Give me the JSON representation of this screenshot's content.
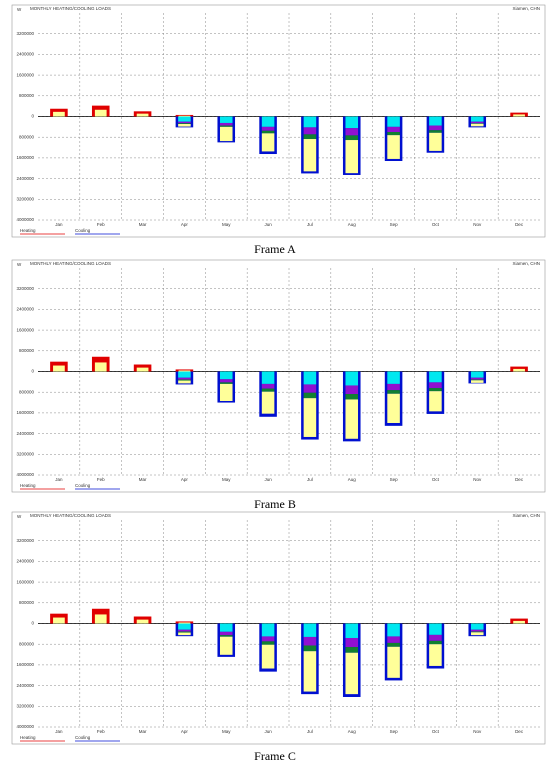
{
  "chart_data": [
    {
      "type": "bar",
      "title": "MONTHLY HEATING/COOLING LOADS",
      "location": "Xiamen, CHN",
      "ylabel": "W",
      "caption": "Frame A",
      "categories": [
        "Jan",
        "Feb",
        "Mar",
        "Apr",
        "May",
        "Jun",
        "Jul",
        "Aug",
        "Sep",
        "Oct",
        "Nov",
        "Dec"
      ],
      "ylim": [
        -4000000,
        4000000
      ],
      "yticks": [
        3200000,
        2400000,
        1600000,
        800000,
        0,
        {
          "value": -800000,
          "label": "800000"
        },
        {
          "value": -1600000,
          "label": "1600000"
        },
        {
          "value": -2400000,
          "label": "2400000"
        },
        {
          "value": -3200000,
          "label": "3200000"
        },
        {
          "value": -4000000,
          "label": "4000000"
        }
      ],
      "heating": {
        "name": "Heating",
        "color": "#e00000",
        "values": [
          300000,
          420000,
          200000,
          60000,
          0,
          0,
          0,
          0,
          0,
          0,
          0,
          150000
        ]
      },
      "heating_inner": {
        "color": "#ffff99",
        "values": [
          180000,
          260000,
          110000,
          30000,
          0,
          0,
          0,
          0,
          0,
          0,
          0,
          80000
        ]
      },
      "cooling": {
        "name": "Cooling",
        "color": "#0010d0",
        "values": [
          0,
          0,
          0,
          -420000,
          -1000000,
          -1450000,
          -2200000,
          -2260000,
          -1720000,
          -1400000,
          -420000,
          0
        ]
      },
      "cooling_parts": [
        {
          "color": "#00e8f0",
          "values": [
            0,
            0,
            0,
            -200000,
            -250000,
            -400000,
            -420000,
            -450000,
            -400000,
            -350000,
            -200000,
            0
          ]
        },
        {
          "color": "#9010d0",
          "values": [
            0,
            0,
            0,
            -60000,
            -100000,
            -150000,
            -270000,
            -280000,
            -200000,
            -180000,
            -60000,
            0
          ]
        },
        {
          "color": "#108030",
          "values": [
            0,
            0,
            0,
            -30000,
            -50000,
            -100000,
            -180000,
            -180000,
            -120000,
            -100000,
            -20000,
            0
          ]
        },
        {
          "color": "#ffff99",
          "values": [
            0,
            0,
            0,
            -100000,
            -550000,
            -700000,
            -1250000,
            -1280000,
            -920000,
            -700000,
            -100000,
            0
          ]
        }
      ]
    },
    {
      "type": "bar",
      "title": "MONTHLY HEATING/COOLING LOADS",
      "location": "Xiamen, CHN",
      "ylabel": "W",
      "caption": "Frame B",
      "categories": [
        "Jan",
        "Feb",
        "Mar",
        "Apr",
        "May",
        "Jun",
        "Jul",
        "Aug",
        "Sep",
        "Oct",
        "Nov",
        "Dec"
      ],
      "ylim": [
        -4000000,
        4000000
      ],
      "yticks": [
        3200000,
        2400000,
        1600000,
        800000,
        0,
        {
          "value": -800000,
          "label": "800000"
        },
        {
          "value": -1600000,
          "label": "1600000"
        },
        {
          "value": -2400000,
          "label": "2400000"
        },
        {
          "value": -3200000,
          "label": "3200000"
        },
        {
          "value": -4000000,
          "label": "4000000"
        }
      ],
      "heating": {
        "name": "Heating",
        "color": "#e00000",
        "values": [
          380000,
          570000,
          270000,
          80000,
          0,
          0,
          0,
          0,
          0,
          0,
          0,
          190000
        ]
      },
      "heating_inner": {
        "color": "#ffff99",
        "values": [
          230000,
          350000,
          150000,
          40000,
          0,
          0,
          0,
          0,
          0,
          0,
          0,
          100000
        ]
      },
      "cooling": {
        "name": "Cooling",
        "color": "#0010d0",
        "values": [
          0,
          0,
          0,
          -500000,
          -1200000,
          -1750000,
          -2630000,
          -2700000,
          -2100000,
          -1640000,
          -460000,
          0
        ]
      },
      "cooling_parts": [
        {
          "color": "#00e8f0",
          "values": [
            0,
            0,
            0,
            -240000,
            -300000,
            -480000,
            -500000,
            -540000,
            -480000,
            -420000,
            -240000,
            0
          ]
        },
        {
          "color": "#9010d0",
          "values": [
            0,
            0,
            0,
            -70000,
            -120000,
            -180000,
            -320000,
            -330000,
            -240000,
            -220000,
            -70000,
            0
          ]
        },
        {
          "color": "#108030",
          "values": [
            0,
            0,
            0,
            -40000,
            -60000,
            -120000,
            -210000,
            -210000,
            -140000,
            -120000,
            -30000,
            0
          ]
        },
        {
          "color": "#ffff99",
          "values": [
            0,
            0,
            0,
            -110000,
            -660000,
            -850000,
            -1500000,
            -1520000,
            -1130000,
            -780000,
            -100000,
            0
          ]
        }
      ]
    },
    {
      "type": "bar",
      "title": "MONTHLY HEATING/COOLING LOADS",
      "location": "Xiamen, CHN",
      "ylabel": "W",
      "caption": "Frame C",
      "categories": [
        "Jan",
        "Feb",
        "Mar",
        "Apr",
        "May",
        "Jun",
        "Jul",
        "Aug",
        "Sep",
        "Oct",
        "Nov",
        "Dec"
      ],
      "ylim": [
        -4000000,
        4000000
      ],
      "yticks": [
        3200000,
        2400000,
        1600000,
        800000,
        0,
        {
          "value": -800000,
          "label": "800000"
        },
        {
          "value": -1600000,
          "label": "1600000"
        },
        {
          "value": -2400000,
          "label": "2400000"
        },
        {
          "value": -3200000,
          "label": "3200000"
        },
        {
          "value": -4000000,
          "label": "4000000"
        }
      ],
      "heating": {
        "name": "Heating",
        "color": "#e00000",
        "values": [
          380000,
          570000,
          270000,
          80000,
          0,
          0,
          0,
          0,
          0,
          0,
          0,
          190000
        ]
      },
      "heating_inner": {
        "color": "#ffff99",
        "values": [
          230000,
          350000,
          150000,
          40000,
          0,
          0,
          0,
          0,
          0,
          0,
          0,
          100000
        ]
      },
      "cooling": {
        "name": "Cooling",
        "color": "#0010d0",
        "values": [
          0,
          0,
          0,
          -490000,
          -1290000,
          -1860000,
          -2730000,
          -2840000,
          -2200000,
          -1740000,
          -490000,
          0
        ]
      },
      "cooling_parts": [
        {
          "color": "#00e8f0",
          "values": [
            0,
            0,
            0,
            -240000,
            -320000,
            -500000,
            -520000,
            -560000,
            -500000,
            -440000,
            -240000,
            0
          ]
        },
        {
          "color": "#9010d0",
          "values": [
            0,
            0,
            0,
            -70000,
            -130000,
            -190000,
            -330000,
            -350000,
            -250000,
            -230000,
            -70000,
            0
          ]
        },
        {
          "color": "#108030",
          "values": [
            0,
            0,
            0,
            -40000,
            -60000,
            -130000,
            -220000,
            -220000,
            -150000,
            -130000,
            -30000,
            0
          ]
        },
        {
          "color": "#ffff99",
          "values": [
            0,
            0,
            0,
            -100000,
            -700000,
            -920000,
            -1560000,
            -1600000,
            -1200000,
            -840000,
            -110000,
            0
          ]
        }
      ]
    }
  ]
}
